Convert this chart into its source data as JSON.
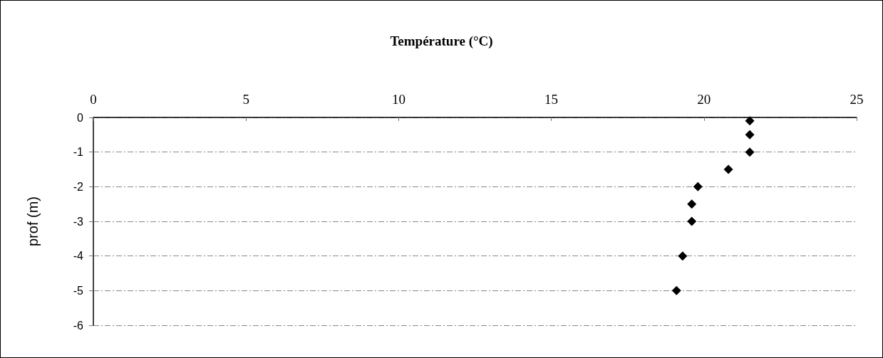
{
  "chart_data": {
    "type": "scatter",
    "xlabel": "Température (°C)",
    "ylabel": "prof (m)",
    "x": [
      21.5,
      21.5,
      21.5,
      20.8,
      19.8,
      19.6,
      19.6,
      19.3,
      19.1
    ],
    "values": [
      -0.1,
      -0.5,
      -1,
      -1.5,
      -2,
      -2.5,
      -3,
      -4,
      -5
    ],
    "color": "#000000",
    "marker": "diamond",
    "xlim": [
      0,
      25
    ],
    "xticks": [
      0,
      5,
      10,
      15,
      20,
      25
    ],
    "ylim": [
      -6,
      0
    ],
    "yticks": [
      0,
      -1,
      -2,
      -3,
      -4,
      -5,
      -6
    ],
    "grid": "y"
  }
}
